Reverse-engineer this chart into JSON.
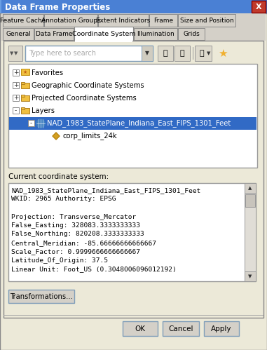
{
  "title": "Data Frame Properties",
  "bg_outer": "#d4d0c8",
  "bg_dialog": "#ece9d8",
  "bg_white": "#ffffff",
  "bg_panel": "#f0f0f0",
  "bg_selected": "#316ac5",
  "bg_titlebar": "#0f3a8a",
  "fg_selected": "#ffffff",
  "color_border": "#999999",
  "color_border_dark": "#666666",
  "color_btn": "#d4d0c8",
  "color_tab_active": "#ffffff",
  "color_tab_inactive": "#d4d0c8",
  "tabs_row1": [
    "Feature Cache",
    "Annotation Groups",
    "Extent Indicators",
    "Frame",
    "Size and Position"
  ],
  "tabs_row2": [
    "General",
    "Data Frame",
    "Coordinate System",
    "Illumination",
    "Grids"
  ],
  "active_tab": "Coordinate System",
  "tree_items": [
    {
      "label": "Favorites",
      "level": 0,
      "type": "star",
      "collapsed": true
    },
    {
      "label": "Geographic Coordinate Systems",
      "level": 0,
      "type": "folder",
      "collapsed": true
    },
    {
      "label": "Projected Coordinate Systems",
      "level": 0,
      "type": "folder",
      "collapsed": true
    },
    {
      "label": "Layers",
      "level": 0,
      "type": "folder",
      "collapsed": false
    },
    {
      "label": "NAD_1983_StatePlane_Indiana_East_FIPS_1301_Feet",
      "level": 1,
      "type": "globe",
      "collapsed": false,
      "selected": true
    },
    {
      "label": "corp_limits_24k",
      "level": 2,
      "type": "diamond",
      "collapsed": true
    }
  ],
  "search_text": "Type here to search",
  "cs_label": "Current coordinate system:",
  "cs_lines": [
    "NAD_1983_StatePlane_Indiana_East_FIPS_1301_Feet",
    "WKID: 2965 Authority: EPSG",
    "",
    "Projection: Transverse_Mercator",
    "False_Easting: 328083.3333333333",
    "False_Northing: 820208.3333333333",
    "Central_Meridian: -85.66666666666667",
    "Scale_Factor: 0.9999666666666667",
    "Latitude_Of_Origin: 37.5",
    "Linear Unit: Foot_US (0.3048006096012192)"
  ],
  "btn_transform": "Transformations...",
  "btn_ok": "OK",
  "btn_cancel": "Cancel",
  "btn_apply": "Apply"
}
